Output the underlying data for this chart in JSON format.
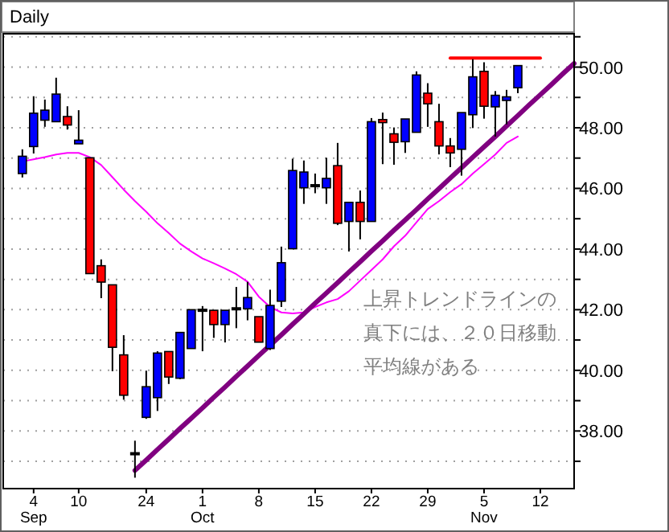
{
  "chart_data": {
    "type": "candlestick",
    "title": "Daily",
    "categories": [
      null,
      "4\nSep",
      null,
      null,
      null,
      "10",
      null,
      null,
      null,
      null,
      null,
      "24",
      null,
      null,
      null,
      null,
      "1\nOct",
      null,
      null,
      null,
      null,
      "8",
      null,
      null,
      null,
      null,
      "15",
      null,
      null,
      null,
      null,
      "22",
      null,
      null,
      null,
      null,
      "29",
      null,
      null,
      null,
      null,
      "5\nNov",
      null,
      null,
      null,
      null,
      "12",
      null,
      null,
      null
    ],
    "ohlc": [
      [
        46.49,
        47.29,
        46.36,
        47.06
      ],
      [
        47.38,
        49.04,
        47.15,
        48.48
      ],
      [
        48.25,
        48.93,
        48.03,
        48.58
      ],
      [
        48.2,
        49.65,
        48.2,
        49.11
      ],
      [
        48.37,
        48.71,
        47.94,
        48.09
      ],
      [
        47.47,
        48.58,
        47.47,
        47.59
      ],
      [
        47.01,
        47.01,
        43.19,
        43.19
      ],
      [
        43.45,
        43.66,
        42.38,
        42.91
      ],
      [
        42.82,
        42.82,
        39.97,
        40.76
      ],
      [
        40.51,
        41.16,
        39.03,
        39.18
      ],
      [
        37.25,
        37.68,
        36.46,
        37.25
      ],
      [
        38.45,
        39.99,
        38.4,
        39.46
      ],
      [
        39.1,
        40.63,
        38.66,
        40.57
      ],
      [
        40.62,
        40.62,
        39.55,
        39.78
      ],
      [
        39.74,
        41.25,
        39.71,
        41.25
      ],
      [
        40.72,
        42.0,
        40.72,
        42.0
      ],
      [
        41.98,
        42.12,
        40.63,
        41.98
      ],
      [
        41.98,
        41.98,
        41.07,
        41.51
      ],
      [
        41.51,
        41.98,
        40.92,
        41.98
      ],
      [
        42.03,
        42.75,
        41.39,
        42.03
      ],
      [
        42.03,
        42.92,
        41.65,
        42.4
      ],
      [
        41.77,
        41.77,
        40.93,
        40.93
      ],
      [
        40.72,
        42.66,
        40.67,
        42.14
      ],
      [
        42.28,
        44.08,
        42.09,
        43.55
      ],
      [
        44.01,
        46.98,
        44.01,
        46.59
      ],
      [
        46.02,
        46.92,
        45.49,
        46.54
      ],
      [
        46.09,
        46.49,
        45.84,
        46.09
      ],
      [
        46.02,
        47.01,
        45.49,
        46.33
      ],
      [
        46.75,
        47.5,
        44.79,
        44.85
      ],
      [
        44.91,
        45.54,
        43.92,
        45.54
      ],
      [
        45.54,
        45.93,
        44.32,
        44.91
      ],
      [
        44.91,
        48.32,
        44.91,
        48.2
      ],
      [
        48.27,
        48.5,
        46.8,
        48.17
      ],
      [
        47.8,
        48.01,
        46.78,
        47.52
      ],
      [
        47.54,
        48.29,
        47.17,
        48.29
      ],
      [
        47.85,
        49.86,
        47.85,
        49.74
      ],
      [
        49.14,
        49.47,
        48.03,
        48.79
      ],
      [
        48.2,
        48.79,
        47.12,
        47.4
      ],
      [
        47.4,
        47.66,
        46.7,
        47.17
      ],
      [
        47.29,
        48.5,
        46.42,
        48.5
      ],
      [
        48.43,
        50.26,
        47.99,
        49.68
      ],
      [
        49.86,
        50.16,
        48.3,
        48.71
      ],
      [
        48.69,
        49.21,
        47.71,
        49.07
      ],
      [
        48.9,
        49.25,
        48.11,
        49.02
      ],
      [
        49.32,
        50.05,
        49.14,
        50.05
      ],
      null,
      null,
      null,
      null,
      null
    ],
    "colors": [
      "#0000ff",
      "#0000ff",
      "#0000ff",
      "#0000ff",
      "#ff0000",
      "#0000ff",
      "#ff0000",
      "#ff0000",
      "#ff0000",
      "#ff0000",
      "#000000",
      "#0000ff",
      "#0000ff",
      "#ff0000",
      "#0000ff",
      "#0000ff",
      "#000000",
      "#ff0000",
      "#0000ff",
      "#000000",
      "#0000ff",
      "#ff0000",
      "#0000ff",
      "#0000ff",
      "#0000ff",
      "#0000ff",
      "#000000",
      "#0000ff",
      "#ff0000",
      "#0000ff",
      "#ff0000",
      "#0000ff",
      "#ff0000",
      "#ff0000",
      "#0000ff",
      "#0000ff",
      "#ff0000",
      "#ff0000",
      "#ff0000",
      "#0000ff",
      "#0000ff",
      "#ff0000",
      "#0000ff",
      "#0000ff",
      "#0000ff",
      null,
      null,
      null,
      null,
      null
    ],
    "series": [
      {
        "type": "line",
        "color": "#ff00ff",
        "values": [
          46.89,
          46.96,
          47.03,
          47.12,
          47.17,
          47.17,
          47.03,
          46.77,
          46.37,
          45.96,
          45.58,
          45.23,
          44.85,
          44.53,
          44.18,
          43.92,
          43.69,
          43.53,
          43.36,
          43.17,
          42.92,
          42.43,
          42.09,
          41.91,
          41.88,
          41.91,
          42.09,
          42.24,
          42.35,
          42.61,
          42.96,
          43.31,
          43.66,
          44.09,
          44.44,
          44.88,
          45.32,
          45.58,
          45.88,
          46.14,
          46.49,
          46.8,
          47.12,
          47.5,
          47.71,
          null,
          null,
          null,
          null,
          null
        ]
      },
      {
        "type": "line",
        "color": "#800080",
        "values": [
          null,
          null,
          null,
          null,
          null,
          null,
          null,
          null,
          null,
          null,
          36.7,
          37.04,
          37.39,
          37.73,
          38.08,
          38.42,
          38.76,
          39.11,
          39.45,
          39.8,
          40.14,
          40.49,
          40.83,
          41.17,
          41.52,
          41.86,
          42.21,
          42.55,
          42.89,
          43.24,
          43.58,
          43.93,
          44.27,
          44.62,
          44.96,
          45.3,
          45.65,
          45.99,
          46.34,
          46.68,
          47.03,
          47.37,
          47.71,
          48.06,
          48.4,
          48.75,
          49.09,
          49.43,
          49.78,
          50.12
        ]
      },
      {
        "type": "line",
        "color": "#ff0000",
        "values": [
          null,
          null,
          null,
          null,
          null,
          null,
          null,
          null,
          null,
          null,
          null,
          null,
          null,
          null,
          null,
          null,
          null,
          null,
          null,
          null,
          null,
          null,
          null,
          null,
          null,
          null,
          null,
          null,
          null,
          null,
          null,
          null,
          null,
          null,
          null,
          null,
          null,
          null,
          50.3,
          50.3,
          50.3,
          50.3,
          50.3,
          50.3,
          50.3,
          50.3,
          50.3,
          null,
          null,
          null
        ]
      }
    ],
    "ylim": [
      36.1,
      51.1
    ],
    "yticks": [
      {
        "value": 37,
        "label": null
      },
      {
        "value": 38,
        "label": "38.00"
      },
      {
        "value": 39,
        "label": null
      },
      {
        "value": 40,
        "label": "40.00"
      },
      {
        "value": 41,
        "label": null
      },
      {
        "value": 42,
        "label": "42.00"
      },
      {
        "value": 43,
        "label": null
      },
      {
        "value": 44,
        "label": "44.00"
      },
      {
        "value": 45,
        "label": null
      },
      {
        "value": 46,
        "label": "46.00"
      },
      {
        "value": 47,
        "label": null
      },
      {
        "value": 48,
        "label": "48.00"
      },
      {
        "value": 49,
        "label": null
      },
      {
        "value": 50,
        "label": "50.00"
      },
      {
        "value": 51,
        "label": null
      }
    ],
    "grid": "y",
    "annotations": [
      "上昇トレンドラインの真下には、２０日移動平均線がある"
    ]
  }
}
